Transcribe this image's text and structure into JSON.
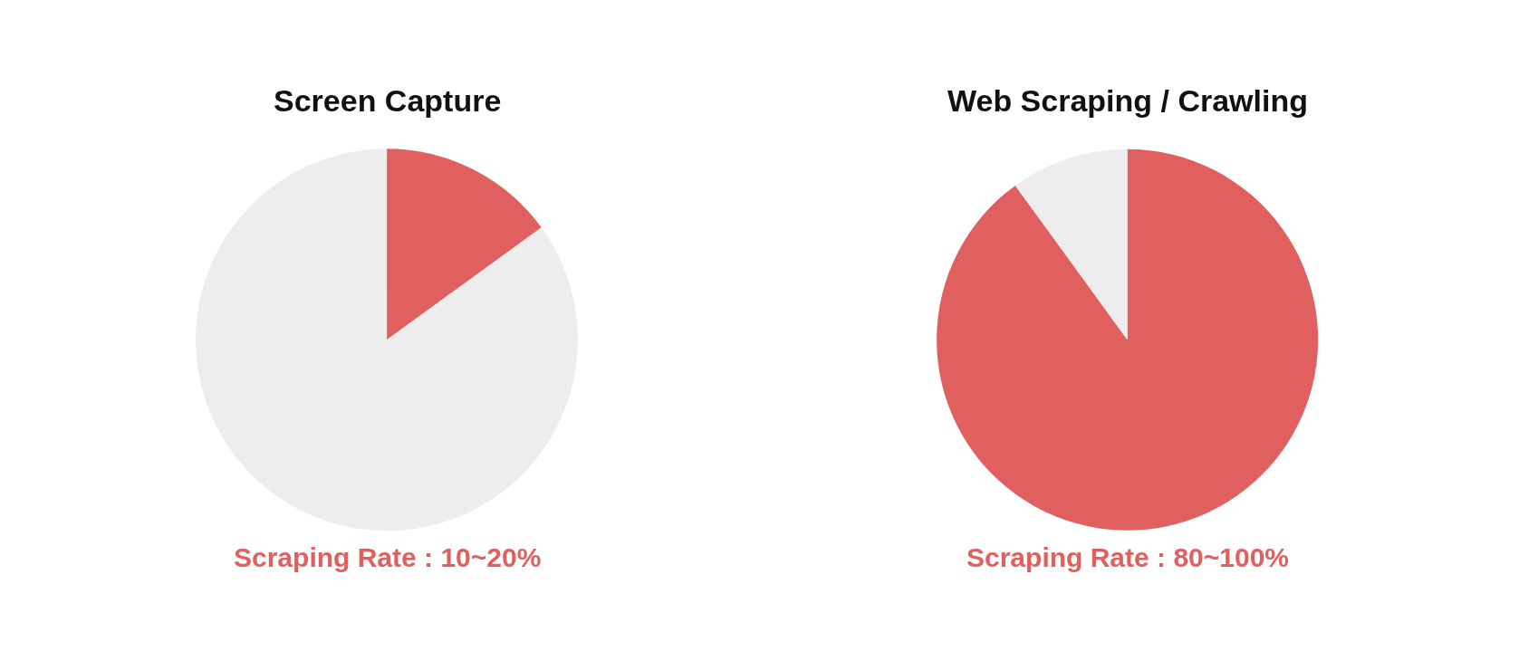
{
  "chart_data": [
    {
      "type": "pie",
      "title": "Screen Capture",
      "categories": [
        null,
        null
      ],
      "values": [
        15,
        85
      ],
      "colors": [
        "#e06060",
        "#ededed"
      ],
      "annotations": [
        "Scraping Rate : 10~20%"
      ],
      "legend": false
    },
    {
      "type": "pie",
      "title": "Web Scraping / Crawling",
      "categories": [
        null,
        null
      ],
      "values": [
        90,
        10
      ],
      "colors": [
        "#e06060",
        "#ededed"
      ],
      "annotations": [
        "Scraping Rate : 80~100%"
      ],
      "legend": false
    }
  ]
}
